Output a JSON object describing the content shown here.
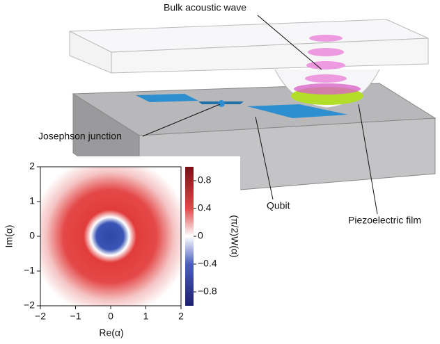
{
  "illustration": {
    "labels": [
      "Bulk acoustic wave",
      "Josephson junction",
      "Qubit",
      "Piezoelectric film"
    ]
  },
  "wigner_plot": {
    "xlabel": "Re(α)",
    "ylabel": "Im(α)",
    "xlim": [
      -2,
      2
    ],
    "ylim": [
      -2,
      2
    ],
    "xticks": [
      {
        "value": -2,
        "label": "−2"
      },
      {
        "value": -1,
        "label": "−1"
      },
      0,
      1,
      2
    ],
    "yticks": [
      {
        "value": -2,
        "label": "−2"
      },
      {
        "value": -1,
        "label": "−1"
      },
      0,
      1,
      2
    ],
    "colorbar": {
      "label": "(π/2)W(α)",
      "lim": [
        -1,
        1
      ],
      "ticks": [
        {
          "value": -0.8,
          "label": "−0.8"
        },
        {
          "value": -0.4,
          "label": "−0.4"
        },
        0,
        0.4,
        0.8
      ]
    }
  }
}
